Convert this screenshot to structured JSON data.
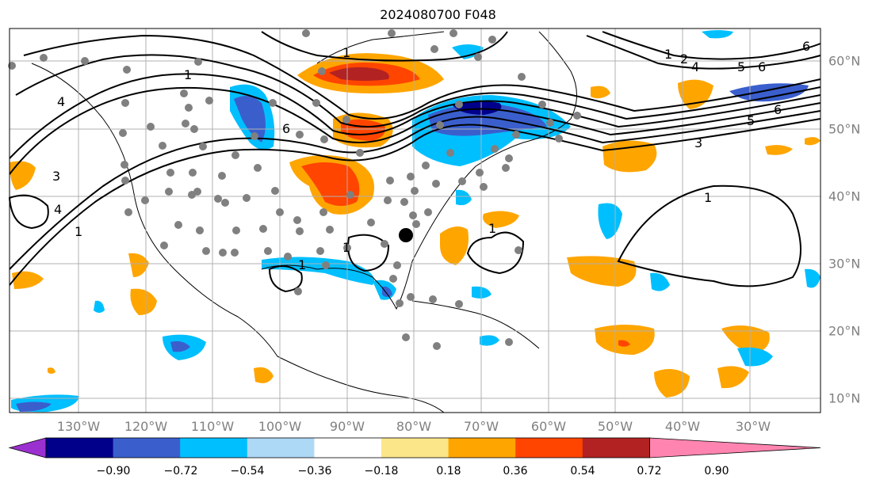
{
  "title": "2024080700 F048",
  "longitude_labels": [
    "130°W",
    "120°W",
    "110°W",
    "100°W",
    "90°W",
    "80°W",
    "70°W",
    "60°W",
    "50°W",
    "40°W",
    "30°W"
  ],
  "latitude_labels": [
    "60°N",
    "50°N",
    "40°N",
    "30°N",
    "20°N",
    "10°N"
  ],
  "colorbar": {
    "ticks": [
      "−0.90",
      "−0.72",
      "−0.54",
      "−0.36",
      "−0.18",
      "0.18",
      "0.36",
      "0.54",
      "0.72",
      "0.90"
    ],
    "colors": [
      "#9b30d0",
      "#00008b",
      "#3a5fcd",
      "#00bfff",
      "#add8f6",
      "#ffffff",
      "#fce68a",
      "#ffa500",
      "#ff4500",
      "#b22222",
      "#ff85b0"
    ]
  },
  "contour_labels": [
    "1",
    "1",
    "1",
    "1",
    "1",
    "1",
    "1",
    "1",
    "2",
    "3",
    "3",
    "4",
    "4",
    "4",
    "5",
    "5",
    "6",
    "6",
    "6",
    "6"
  ]
}
